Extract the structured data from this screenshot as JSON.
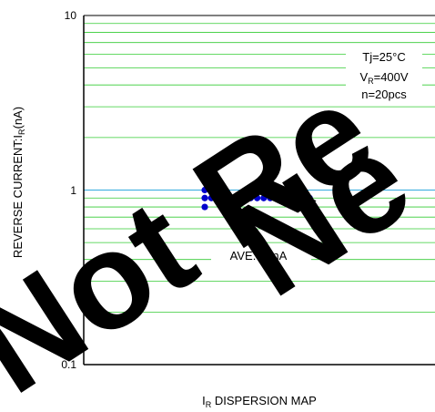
{
  "chart_data": {
    "type": "scatter",
    "xlabel_main": "I",
    "xlabel_sub": "R",
    "xlabel_rest": " DISPERSION MAP",
    "ylabel_main": "REVERSE CURRENT:I",
    "ylabel_sub": "R",
    "ylabel_rest": "(nA)",
    "yscale": "log",
    "ylim": [
      0.1,
      10
    ],
    "yticks": [
      "10",
      "1",
      "0.1"
    ],
    "conditions": {
      "line1": "Tj=25°C",
      "line2_main": "V",
      "line2_sub": "R",
      "line2_rest": "=400V",
      "line3": "n=20pcs"
    },
    "annotation": "AVE:0.9nA",
    "points": [
      {
        "x": 1,
        "y": 1.0
      },
      {
        "x": 2,
        "y": 1.0
      },
      {
        "x": 1,
        "y": 0.9
      },
      {
        "x": 2,
        "y": 0.9
      },
      {
        "x": 3,
        "y": 0.9
      },
      {
        "x": 4,
        "y": 0.9
      },
      {
        "x": 5,
        "y": 0.9
      },
      {
        "x": 6,
        "y": 0.9
      },
      {
        "x": 7,
        "y": 0.9
      },
      {
        "x": 8,
        "y": 0.9
      },
      {
        "x": 9,
        "y": 0.9
      },
      {
        "x": 10,
        "y": 0.9
      },
      {
        "x": 11,
        "y": 0.9
      },
      {
        "x": 12,
        "y": 0.9
      },
      {
        "x": 13,
        "y": 0.9
      },
      {
        "x": 14,
        "y": 0.9
      },
      {
        "x": 15,
        "y": 0.9
      },
      {
        "x": 16,
        "y": 0.9
      },
      {
        "x": 17,
        "y": 0.9
      },
      {
        "x": 1,
        "y": 0.8
      }
    ],
    "colors": {
      "points": "#0000cc",
      "minor_grid": "#33cc33",
      "major_grid": "#33aadd",
      "axis": "#000000"
    },
    "watermark": "Not Recommended for New Design"
  }
}
